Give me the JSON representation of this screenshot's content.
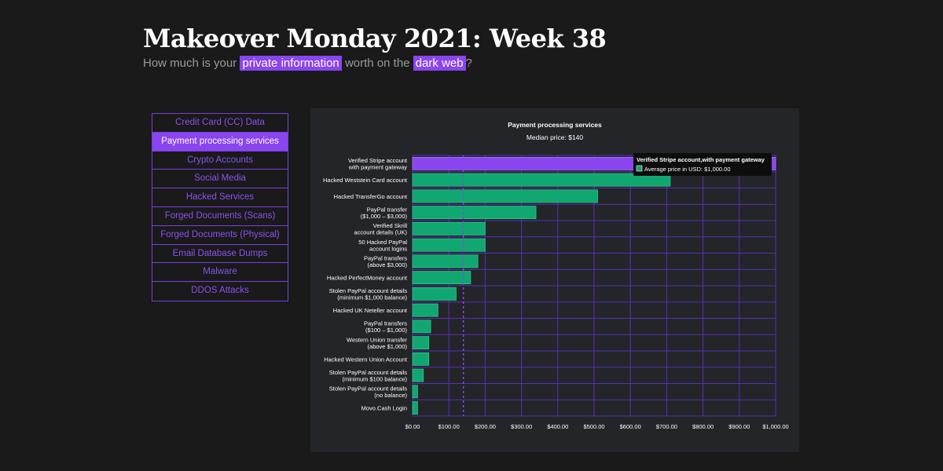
{
  "header": {
    "title": "Makeover Monday 2021: Week 38",
    "subtitle_pre": "How much is your ",
    "highlight_1": "private information",
    "subtitle_mid": " worth on the ",
    "highlight_2": "dark web",
    "subtitle_post": "?"
  },
  "menu": {
    "items": [
      {
        "label": "Credit Card (CC) Data",
        "active": false
      },
      {
        "label": "Payment processing services",
        "active": true
      },
      {
        "label": "Crypto Accounts",
        "active": false
      },
      {
        "label": "Social Media",
        "active": false
      },
      {
        "label": "Hacked Services",
        "active": false
      },
      {
        "label": "Forged Documents (Scans)",
        "active": false
      },
      {
        "label": "Forged Documents (Physical)",
        "active": false
      },
      {
        "label": "Email Database Dumps",
        "active": false
      },
      {
        "label": "Malware",
        "active": false
      },
      {
        "label": "DDOS Attacks",
        "active": false
      }
    ]
  },
  "colors": {
    "bar": "#10a870",
    "bar_highlight": "#8a44f0",
    "grid": "#5a2fb8",
    "median": "#8a44f0"
  },
  "tooltip": {
    "title": "Verified Stripe account,with payment gateway",
    "label": "Average price in USD: $1,000.00"
  },
  "chart_data": {
    "type": "bar",
    "orientation": "horizontal",
    "title": "Payment processing services",
    "subtitle": "Median price: $140",
    "median": 140,
    "xlim": [
      0,
      1000
    ],
    "xticks": [
      0,
      100,
      200,
      300,
      400,
      500,
      600,
      700,
      800,
      900,
      1000
    ],
    "xtick_labels": [
      "$0.00",
      "$100.00",
      "$200.00",
      "$300.00",
      "$400.00",
      "$500.00",
      "$600.00",
      "$700.00",
      "$800.00",
      "$900.00",
      "$1,000.00"
    ],
    "grid": true,
    "categories": [
      [
        "Verified Stripe account",
        "with payment gateway"
      ],
      [
        "Hacked Weststein Card account"
      ],
      [
        "Hacked TransferGo account"
      ],
      [
        "PayPal transfer",
        "($1,000 – $3,000)"
      ],
      [
        "Verified Skrill",
        "account details (UK)"
      ],
      [
        "50 Hacked PayPal",
        "account logins"
      ],
      [
        "PayPal transfers",
        "(above $3,000)"
      ],
      [
        "Hacked PerfectMoney account"
      ],
      [
        "Stolen PayPal account details",
        "(minimum $1,000 balance)"
      ],
      [
        "Hacked UK Neteller account"
      ],
      [
        "PayPal transfers",
        "($100 – $1,000)"
      ],
      [
        "Western Union transfer",
        "(above $1,000)"
      ],
      [
        "Hacked Western Union Account"
      ],
      [
        "Stolen PayPal account details",
        "(minimum $100 balance)"
      ],
      [
        "Stolen PayPal account details",
        "(no balance)"
      ],
      [
        "Movo.Cash Login"
      ]
    ],
    "values": [
      1000,
      710,
      510,
      340,
      200,
      200,
      180,
      160,
      120,
      70,
      50,
      45,
      45,
      30,
      14,
      14
    ],
    "highlight_index": 0
  }
}
